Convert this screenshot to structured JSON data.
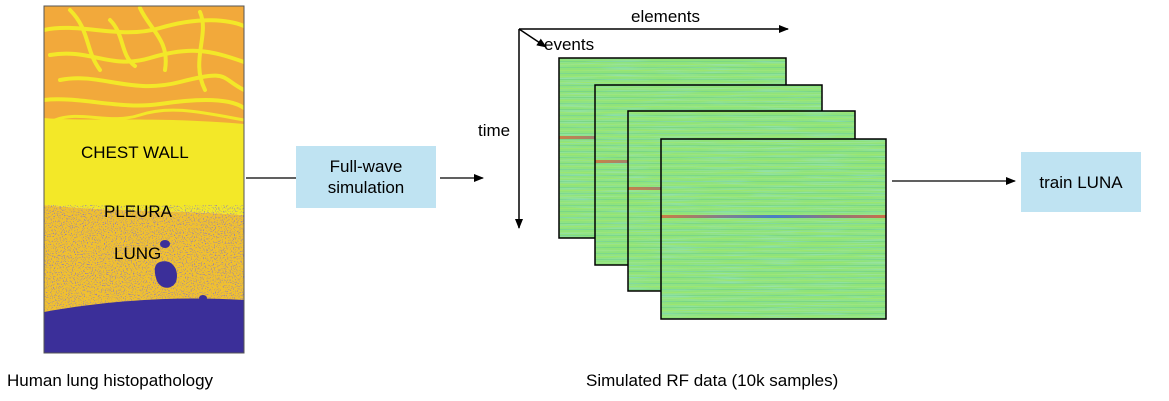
{
  "histology": {
    "regions": [
      "CHEST WALL",
      "PLEURA",
      "LUNG"
    ],
    "caption": "Human lung histopathology",
    "colors": {
      "chest_wall_fat": "#f2a93b",
      "chest_wall": "#f3e828",
      "lung_tissue": "#f0c030",
      "air": "#3b2f99"
    }
  },
  "simulation_box": {
    "line1": "Full-wave",
    "line2": "simulation",
    "color": "#bfe3f2"
  },
  "rf_data": {
    "axes": {
      "x": "elements",
      "y": "time",
      "z": "events"
    },
    "caption": "Simulated RF data (10k samples)",
    "frame_count": 4,
    "background_color": "#8fe37a"
  },
  "train_box": {
    "label": "train LUNA",
    "color": "#bfe3f2"
  }
}
